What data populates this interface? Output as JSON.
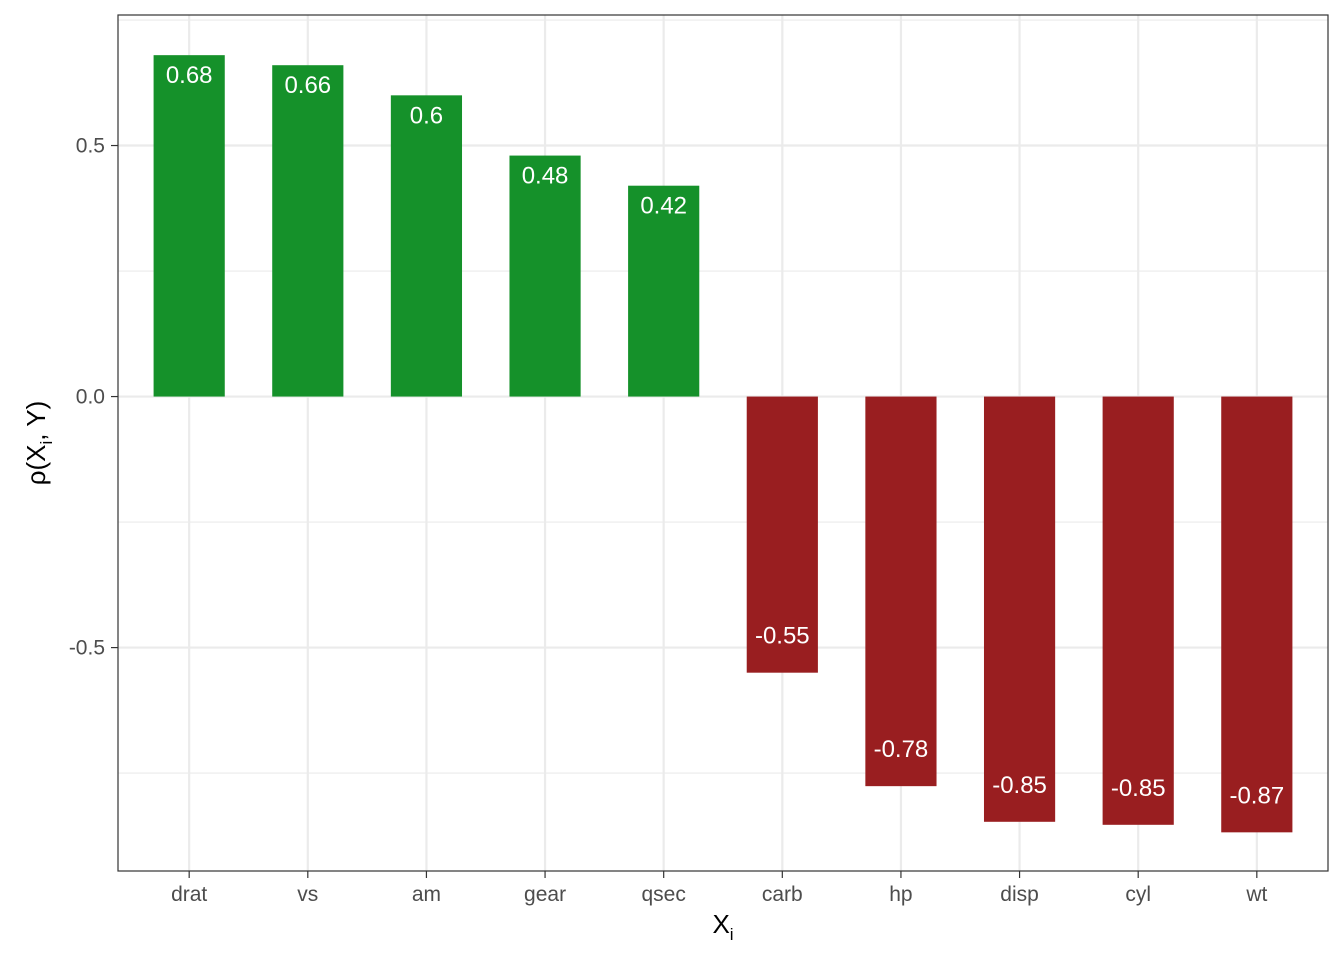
{
  "chart_data": {
    "type": "bar",
    "categories": [
      "drat",
      "vs",
      "am",
      "gear",
      "qsec",
      "carb",
      "hp",
      "disp",
      "cyl",
      "wt"
    ],
    "values": [
      0.68,
      0.66,
      0.6,
      0.48,
      0.42,
      -0.55,
      -0.78,
      -0.85,
      -0.85,
      -0.87
    ],
    "value_labels": [
      "0.68",
      "0.66",
      "0.6",
      "0.48",
      "0.42",
      "-0.55",
      "-0.78",
      "-0.85",
      "-0.85",
      "-0.87"
    ],
    "display_values": [
      0.68,
      0.66,
      0.6,
      0.48,
      0.42,
      -0.55,
      -0.776,
      -0.847,
      -0.853,
      -0.868
    ],
    "xlabel": "X",
    "xlabel_subscript": "i",
    "ylabel": "ρ(X",
    "ylabel_subscript": "i",
    "ylabel_suffix": ", Y)",
    "ylim": [
      -0.945,
      0.76
    ],
    "yticks": [
      0.5,
      0.0,
      -0.5
    ],
    "ytick_labels": [
      "0.5",
      "0.0",
      "-0.5"
    ],
    "grid": true,
    "legend": "none",
    "colors": {
      "positive": "#15912a",
      "negative": "#991e20",
      "grid": "#ebebeb",
      "panel_border": "#333333"
    }
  }
}
